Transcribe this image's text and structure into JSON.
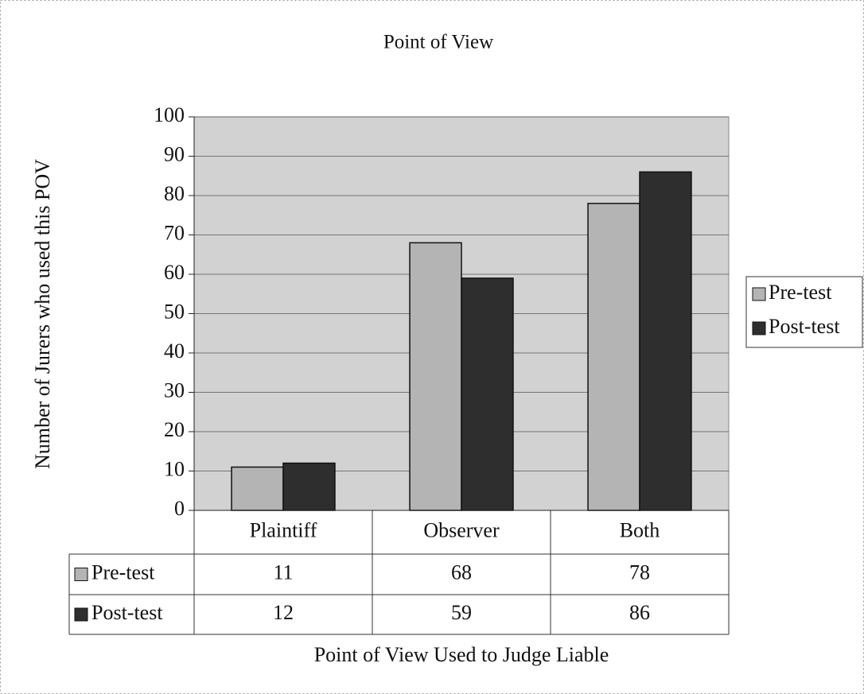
{
  "chart_data": {
    "type": "bar",
    "title": "Point of View",
    "x_label": "Point of View Used to Judge Liable",
    "y_label": "Number of Jurers who used this POV",
    "categories": [
      "Plaintiff",
      "Observer",
      "Both"
    ],
    "series": [
      {
        "name": "Pre-test",
        "color": "#b4b4b4",
        "values": [
          11,
          68,
          78
        ]
      },
      {
        "name": "Post-test",
        "color": "#2e2e2e",
        "values": [
          12,
          59,
          86
        ]
      }
    ],
    "ylim": [
      0,
      100
    ],
    "yticks": [
      0,
      10,
      20,
      30,
      40,
      50,
      60,
      70,
      80,
      90,
      100
    ],
    "grid": true,
    "legend": "right",
    "data_table": true
  }
}
